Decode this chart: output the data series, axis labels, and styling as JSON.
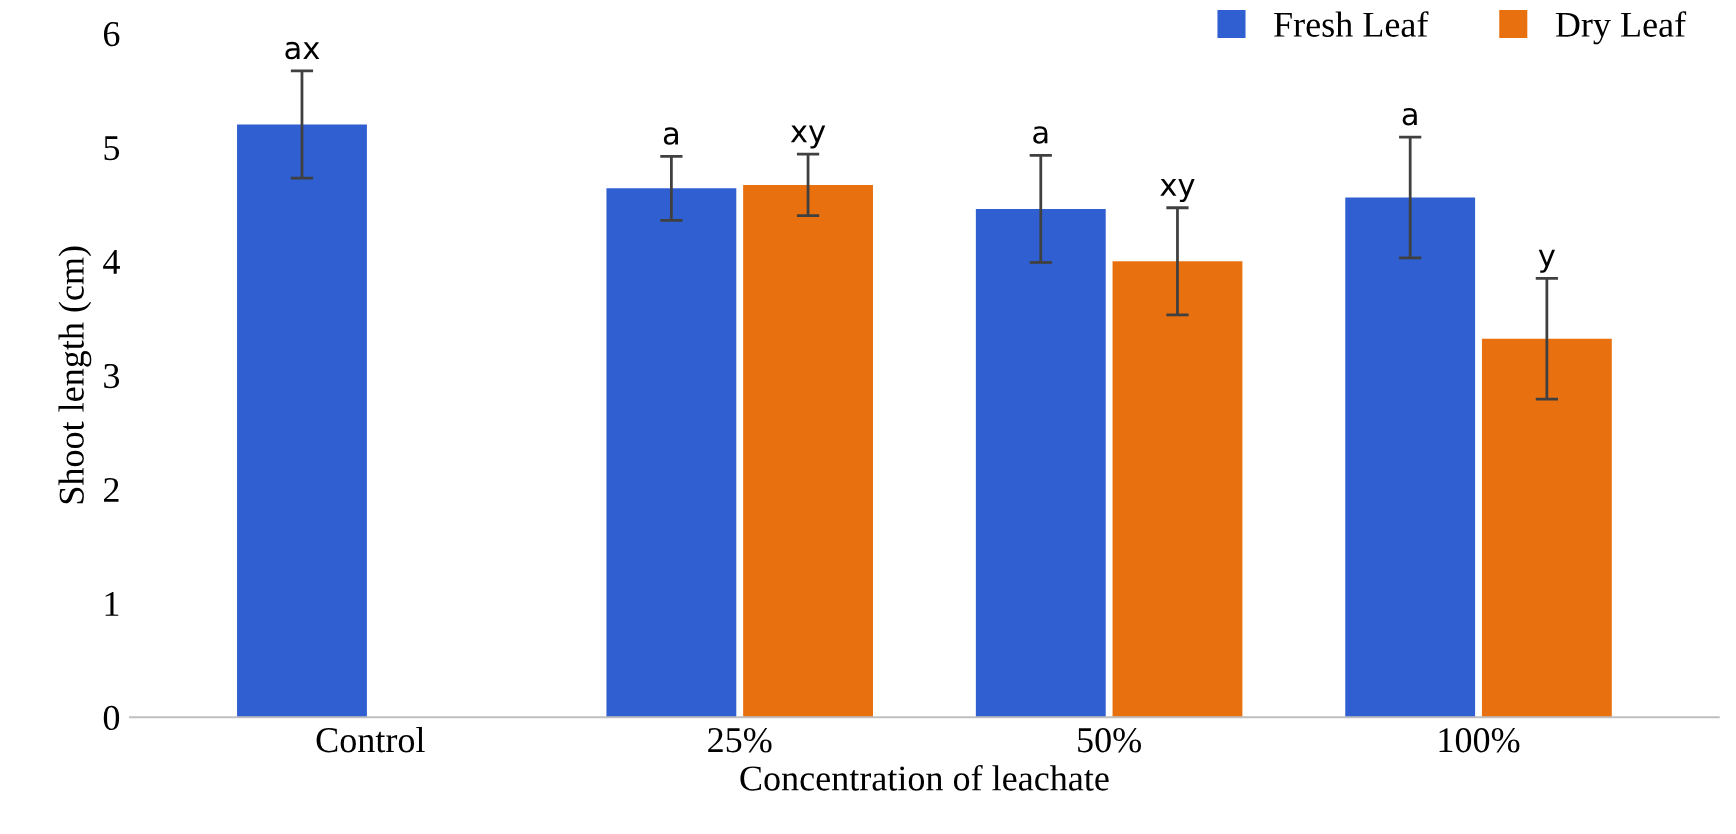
{
  "chart_data": {
    "type": "bar",
    "xlabel": "Concentration of leachate",
    "ylabel": "Shoot length (cm)",
    "categories": [
      "Control",
      "25%",
      "50%",
      "100%"
    ],
    "series": [
      {
        "name": "Fresh Leaf",
        "color": "#2f5fd0",
        "values": [
          5.2,
          4.64,
          4.46,
          4.56
        ],
        "errors": [
          0.47,
          0.28,
          0.47,
          0.53
        ],
        "value_labels": [
          "ax",
          "a",
          "a",
          "a"
        ]
      },
      {
        "name": "Dry Leaf",
        "color": "#e8700f",
        "values": [
          null,
          4.67,
          4.0,
          3.32
        ],
        "errors": [
          null,
          0.27,
          0.47,
          0.53
        ],
        "value_labels": [
          null,
          "xy",
          "xy",
          "y"
        ]
      }
    ],
    "ylim": [
      0,
      6
    ],
    "yticks": [
      0,
      1,
      2,
      3,
      4,
      5,
      6
    ],
    "grid": false,
    "legend": "top right"
  }
}
